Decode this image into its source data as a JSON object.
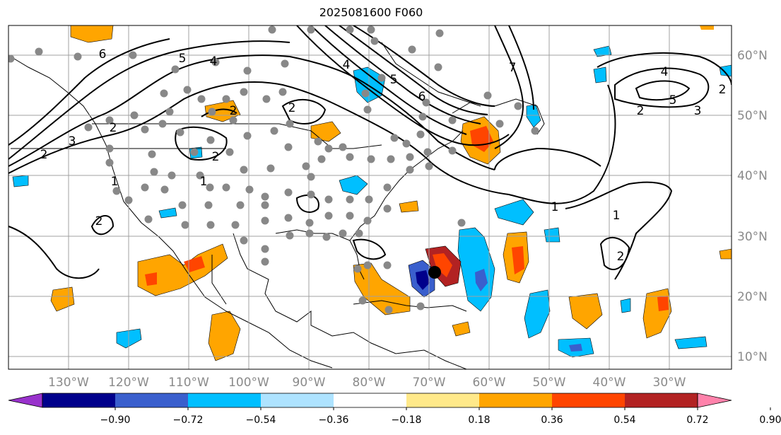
{
  "title": "2025081600 F060",
  "lon_labels": [
    "130°W",
    "120°W",
    "110°W",
    "100°W",
    "90°W",
    "80°W",
    "70°W",
    "60°W",
    "50°W",
    "40°W",
    "30°W"
  ],
  "lat_labels": [
    "60°N",
    "50°N",
    "40°N",
    "30°N",
    "20°N",
    "10°N"
  ],
  "colorbar": {
    "ticks": [
      "−0.90",
      "−0.72",
      "−0.54",
      "−0.36",
      "−0.18",
      "0.18",
      "0.36",
      "0.54",
      "0.72",
      "0.90"
    ],
    "colors": [
      "#9932cc",
      "#00008b",
      "#3a5fcd",
      "#00bfff",
      "#aee3ff",
      "#ffffff",
      "#ffe98a",
      "#ffa500",
      "#ff4500",
      "#b22222",
      "#ff82ab"
    ]
  },
  "contour_labels": [
    "6",
    "5",
    "4",
    "2",
    "3",
    "2",
    "1",
    "2",
    "2",
    "1",
    "2",
    "2",
    "5",
    "6",
    "4",
    "7",
    "1",
    "2",
    "4",
    "5",
    "3",
    "2",
    "1",
    "2"
  ],
  "colors": {
    "land_outline": "#000000",
    "grid": "#a0a0a0",
    "station_dot": "#888888",
    "storm_marker": "#000000"
  }
}
